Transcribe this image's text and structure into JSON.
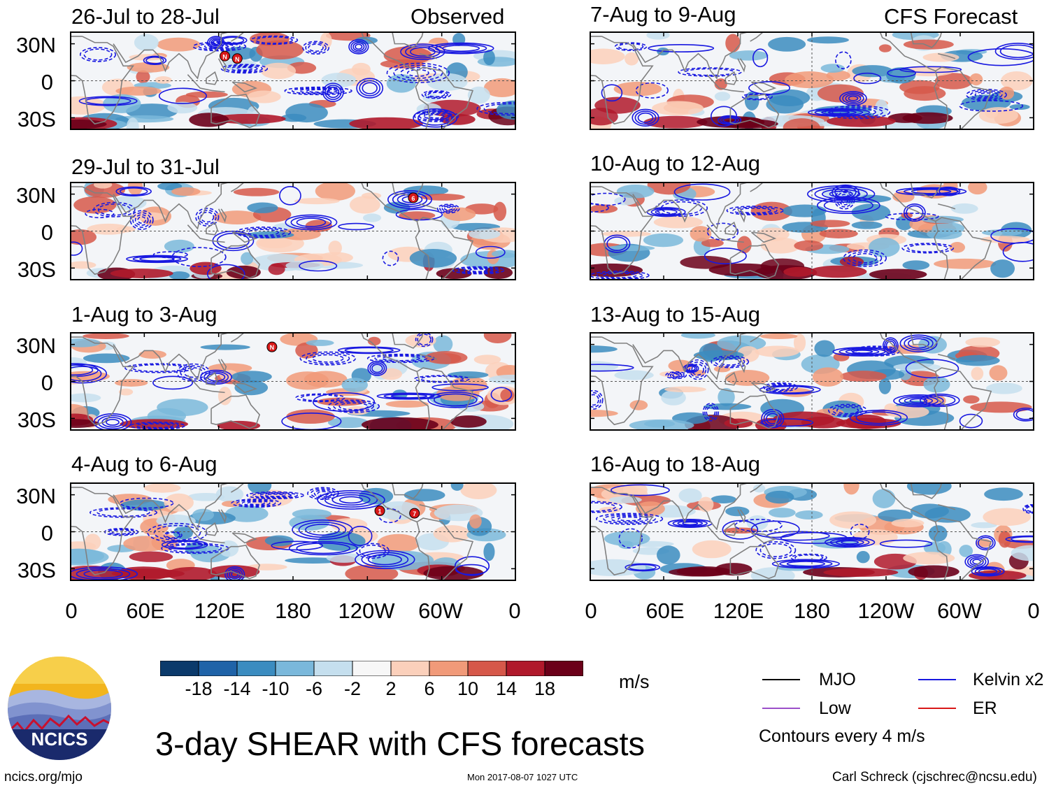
{
  "header": {
    "observed_label": "Observed",
    "forecast_label": "CFS Forecast"
  },
  "colors": {
    "contour_blue": "#1818e0",
    "coast_gray": "#808080",
    "ncics_navy": "#1a2a6c"
  },
  "chart_data": {
    "type": "heatmap",
    "variable": "3-day SHEAR with CFS forecasts",
    "units": "m/s",
    "x_ticks": [
      "0",
      "60E",
      "120E",
      "180",
      "120W",
      "60W",
      "0"
    ],
    "y_ticks": [
      "30N",
      "0",
      "30S"
    ],
    "lat_range": [
      -40,
      40
    ],
    "lon_range": [
      0,
      360
    ],
    "observed_panels": [
      {
        "title": "26-Jul to 28-Jul",
        "storms": [
          {
            "label": "N",
            "lon": 125,
            "lat": 20
          },
          {
            "label": "N",
            "lon": 135,
            "lat": 18
          }
        ]
      },
      {
        "title": "29-Jul to 31-Jul",
        "storms": [
          {
            "label": "6",
            "lon": 277,
            "lat": 27
          }
        ]
      },
      {
        "title": "1-Aug to 3-Aug",
        "storms": [
          {
            "label": "N",
            "lon": 163,
            "lat": 28
          }
        ]
      },
      {
        "title": "4-Aug to 6-Aug",
        "storms": [
          {
            "label": "1",
            "lon": 250,
            "lat": 17
          },
          {
            "label": "7",
            "lon": 278,
            "lat": 15
          }
        ]
      }
    ],
    "forecast_panels": [
      {
        "title": "7-Aug to 9-Aug",
        "storms": []
      },
      {
        "title": "10-Aug to 12-Aug",
        "storms": []
      },
      {
        "title": "13-Aug to 15-Aug",
        "storms": []
      },
      {
        "title": "16-Aug to 18-Aug",
        "storms": []
      }
    ],
    "colorbar": {
      "labels": [
        "-18",
        "-14",
        "-10",
        "-6",
        "-2",
        "2",
        "6",
        "10",
        "14",
        "18"
      ],
      "colors": [
        "#0b3a6b",
        "#1f63a8",
        "#3b8cc0",
        "#7ab8db",
        "#c5dfee",
        "#f7f7f7",
        "#fbd0bb",
        "#f19a79",
        "#d6584a",
        "#b0192b",
        "#6b0019"
      ]
    },
    "legend": [
      {
        "name": "MJO",
        "color": "#000000"
      },
      {
        "name": "Kelvin x2",
        "color": "#1818e0"
      },
      {
        "name": "Low",
        "color": "#9b4fc9"
      },
      {
        "name": "ER",
        "color": "#d81818"
      }
    ],
    "contour_note": "Contours every 4 m/s"
  },
  "branding": {
    "logo_text": "NCICS",
    "main_title": "3-day SHEAR with CFS forecasts",
    "units": "m/s",
    "footer_left": "ncics.org/mjo",
    "footer_mid": "Mon 2017-08-07 1027 UTC",
    "footer_right": "Carl Schreck (cjschrec@ncsu.edu)"
  }
}
